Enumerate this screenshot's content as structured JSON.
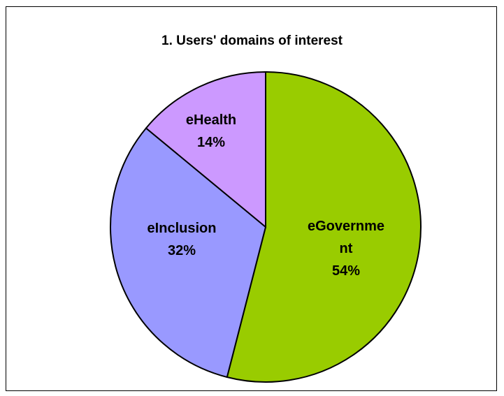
{
  "chart_data": {
    "type": "pie",
    "title": "1. Users' domains of interest",
    "slices": [
      {
        "name": "eGovernment",
        "label_lines": [
          "eGovernme",
          "nt"
        ],
        "value": 54,
        "value_label": "54%",
        "color": "#99cc00"
      },
      {
        "name": "eInclusion",
        "label_lines": [
          "eInclusion"
        ],
        "value": 32,
        "value_label": "32%",
        "color": "#9999ff"
      },
      {
        "name": "eHealth",
        "label_lines": [
          "eHealth"
        ],
        "value": 14,
        "value_label": "14%",
        "color": "#cc99ff"
      }
    ],
    "start": "12 o'clock",
    "direction": "clockwise",
    "legend": "none"
  }
}
